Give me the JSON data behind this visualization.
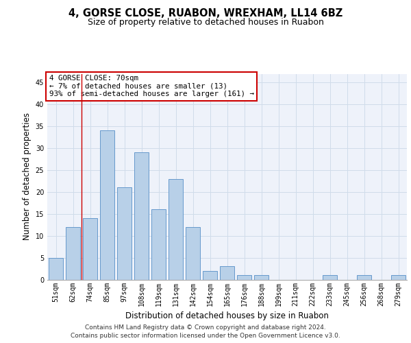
{
  "title_line1": "4, GORSE CLOSE, RUABON, WREXHAM, LL14 6BZ",
  "title_line2": "Size of property relative to detached houses in Ruabon",
  "xlabel": "Distribution of detached houses by size in Ruabon",
  "ylabel": "Number of detached properties",
  "categories": [
    "51sqm",
    "62sqm",
    "74sqm",
    "85sqm",
    "97sqm",
    "108sqm",
    "119sqm",
    "131sqm",
    "142sqm",
    "154sqm",
    "165sqm",
    "176sqm",
    "188sqm",
    "199sqm",
    "211sqm",
    "222sqm",
    "233sqm",
    "245sqm",
    "256sqm",
    "268sqm",
    "279sqm"
  ],
  "values": [
    5,
    12,
    14,
    34,
    21,
    29,
    16,
    23,
    12,
    2,
    3,
    1,
    1,
    0,
    0,
    0,
    1,
    0,
    1,
    0,
    1
  ],
  "bar_color": "#b8d0e8",
  "bar_edge_color": "#6699cc",
  "grid_color": "#d0dcea",
  "background_color": "#eef2fa",
  "annotation_text_line1": "4 GORSE CLOSE: 70sqm",
  "annotation_text_line2": "← 7% of detached houses are smaller (13)",
  "annotation_text_line3": "93% of semi-detached houses are larger (161) →",
  "annotation_box_facecolor": "#ffffff",
  "annotation_box_edgecolor": "#cc0000",
  "red_line_x": 1.5,
  "ylim": [
    0,
    47
  ],
  "yticks": [
    0,
    5,
    10,
    15,
    20,
    25,
    30,
    35,
    40,
    45
  ],
  "footer_line1": "Contains HM Land Registry data © Crown copyright and database right 2024.",
  "footer_line2": "Contains public sector information licensed under the Open Government Licence v3.0.",
  "title_fontsize": 10.5,
  "subtitle_fontsize": 9,
  "tick_fontsize": 7,
  "ylabel_fontsize": 8.5,
  "xlabel_fontsize": 8.5,
  "annotation_fontsize": 7.8,
  "footer_fontsize": 6.5
}
